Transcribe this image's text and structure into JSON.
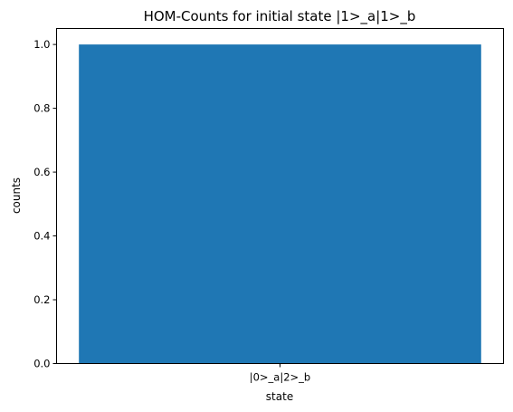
{
  "chart_data": {
    "type": "bar",
    "title": "HOM-Counts for initial state |1>_a|1>_b",
    "xlabel": "state",
    "ylabel": "counts",
    "categories": [
      "|0>_a|2>_b"
    ],
    "values": [
      1.0
    ],
    "ylim": [
      0,
      1.05
    ],
    "yticks": [
      "0.0",
      "0.2",
      "0.4",
      "0.6",
      "0.8",
      "1.0"
    ],
    "bar_color": "#1f77b4",
    "grid": false
  }
}
